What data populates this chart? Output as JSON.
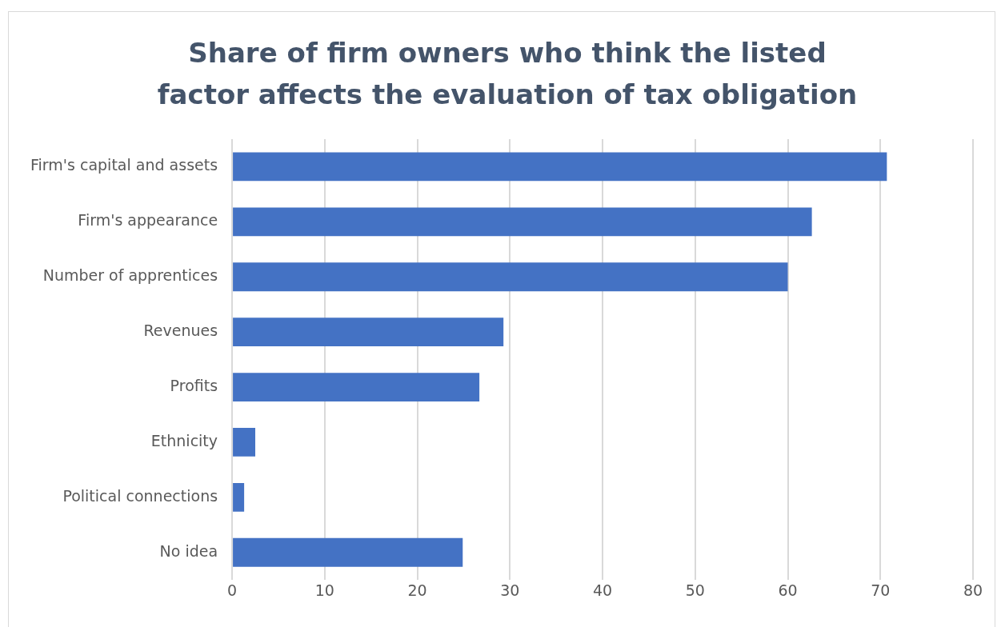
{
  "chart_data": {
    "type": "bar",
    "orientation": "horizontal",
    "title": "Share of firm owners who think the listed factor affects the evaluation of tax obligation",
    "categories": [
      "Firm's capital and assets",
      "Firm's appearance",
      "Number of apprentices",
      "Revenues",
      "Profits",
      "Ethnicity",
      "Political connections",
      "No idea"
    ],
    "values": [
      70.7,
      62.6,
      60.0,
      29.3,
      26.7,
      2.5,
      1.3,
      24.9
    ],
    "color": "#4472c4",
    "xlim": [
      0,
      80
    ],
    "xticks": [
      0,
      10,
      20,
      30,
      40,
      50,
      60,
      70,
      80
    ],
    "grid": "x",
    "legend": false
  }
}
